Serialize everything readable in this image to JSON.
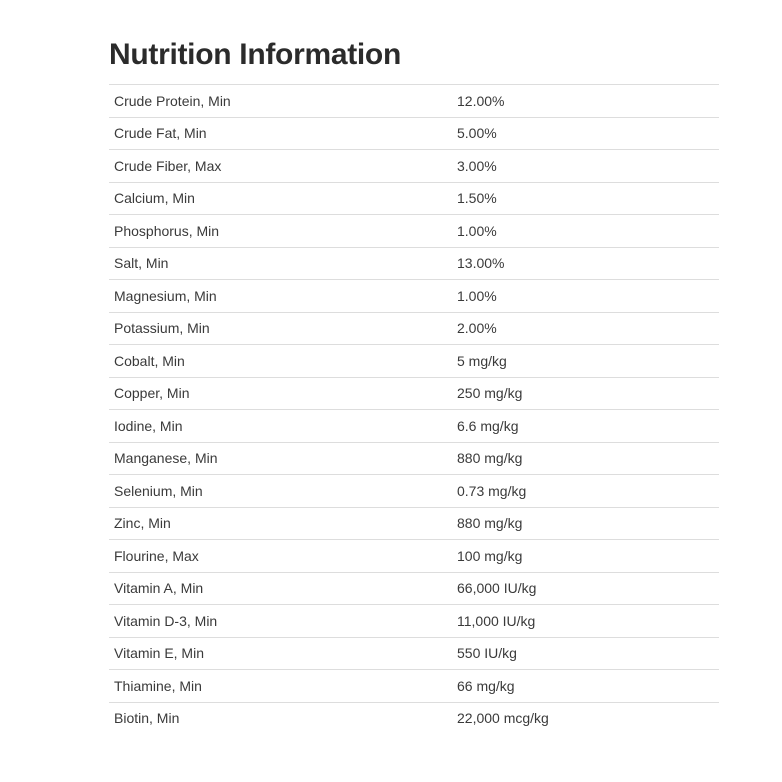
{
  "title": "Nutrition Information",
  "rows": [
    {
      "label": "Crude Protein, Min",
      "value": "12.00%"
    },
    {
      "label": "Crude Fat, Min",
      "value": "5.00%"
    },
    {
      "label": "Crude Fiber, Max",
      "value": "3.00%"
    },
    {
      "label": "Calcium, Min",
      "value": "1.50%"
    },
    {
      "label": "Phosphorus, Min",
      "value": "1.00%"
    },
    {
      "label": "Salt, Min",
      "value": "13.00%"
    },
    {
      "label": "Magnesium, Min",
      "value": "1.00%"
    },
    {
      "label": "Potassium, Min",
      "value": "2.00%"
    },
    {
      "label": "Cobalt, Min",
      "value": "5 mg/kg"
    },
    {
      "label": "Copper, Min",
      "value": "250 mg/kg"
    },
    {
      "label": "Iodine, Min",
      "value": "6.6 mg/kg"
    },
    {
      "label": "Manganese, Min",
      "value": "880 mg/kg"
    },
    {
      "label": "Selenium, Min",
      "value": "0.73 mg/kg"
    },
    {
      "label": "Zinc, Min",
      "value": "880 mg/kg"
    },
    {
      "label": "Flourine, Max",
      "value": "100 mg/kg"
    },
    {
      "label": "Vitamin A, Min",
      "value": "66,000 IU/kg"
    },
    {
      "label": "Vitamin D-3, Min",
      "value": "11,000 IU/kg"
    },
    {
      "label": "Vitamin E, Min",
      "value": "550 IU/kg"
    },
    {
      "label": "Thiamine, Min",
      "value": "66 mg/kg"
    },
    {
      "label": "Biotin, Min",
      "value": "22,000 mcg/kg"
    }
  ]
}
